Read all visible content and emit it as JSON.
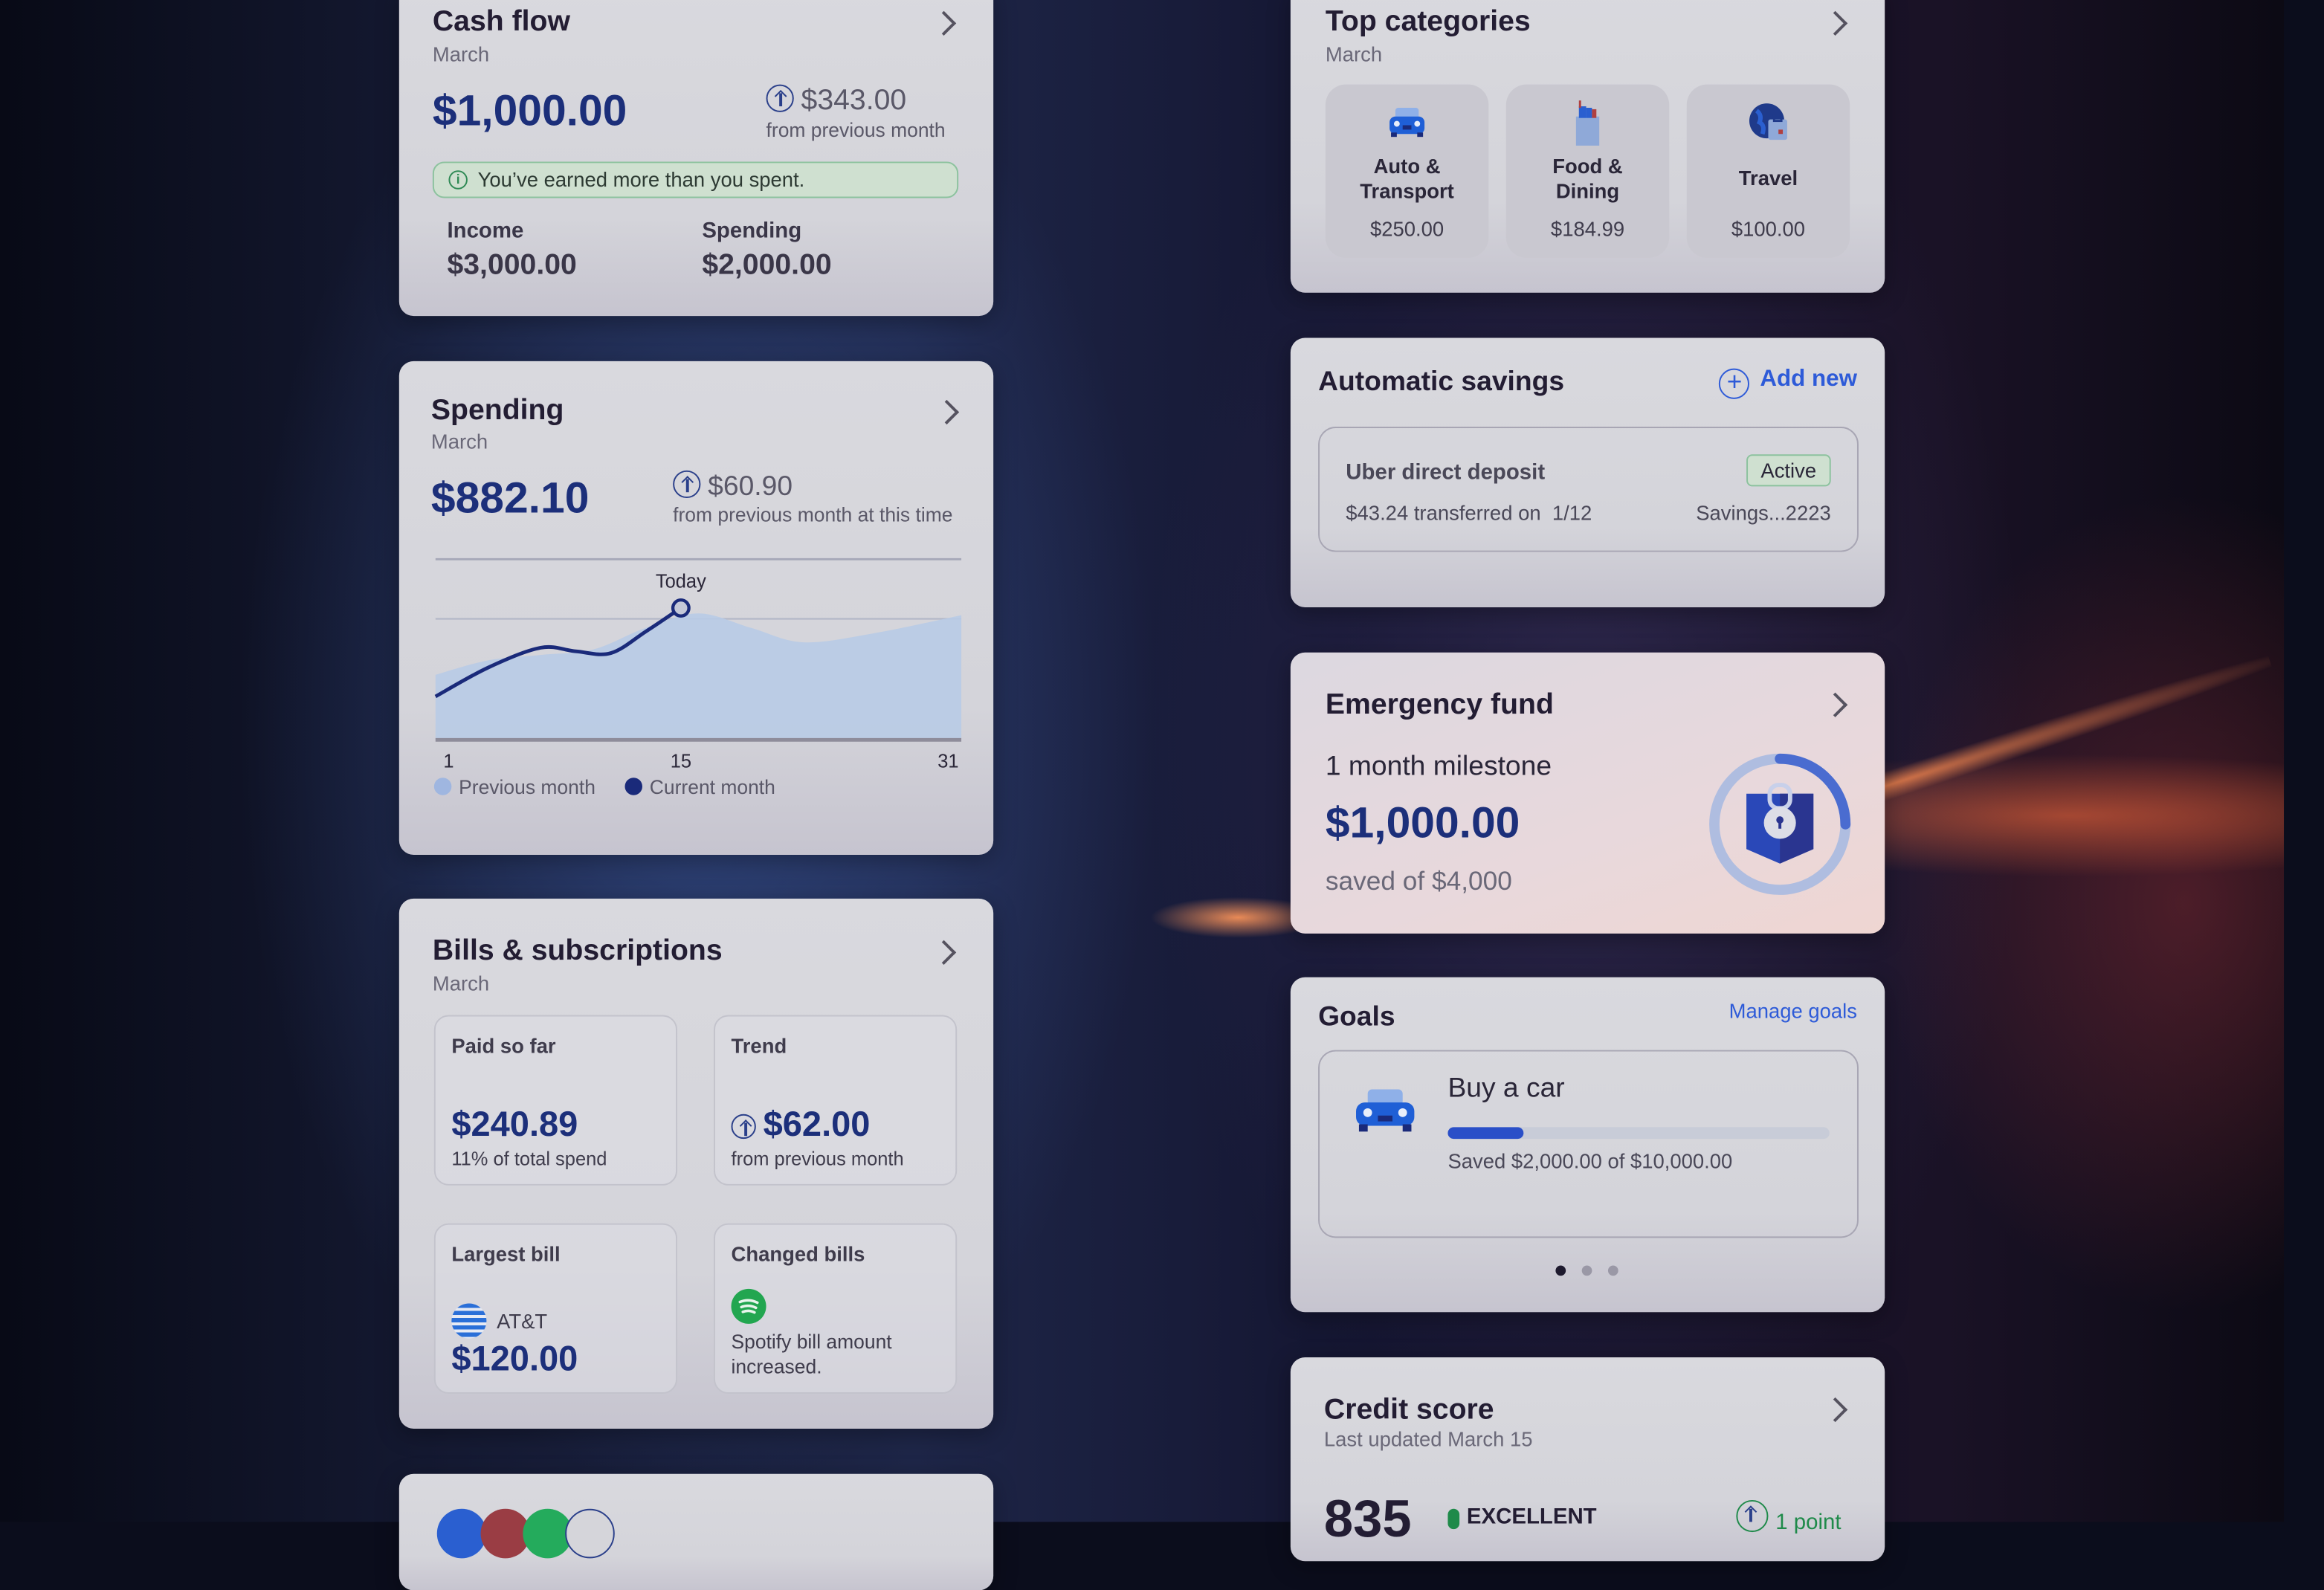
{
  "cash_flow": {
    "title": "Cash flow",
    "period": "March",
    "amount": "$1,000.00",
    "change": "$343.00",
    "change_label": "from previous month",
    "banner": "You’ve earned more than you spent.",
    "income_label": "Income",
    "income": "$3,000.00",
    "spending_label": "Spending",
    "spending": "$2,000.00"
  },
  "spending": {
    "title": "Spending",
    "period": "March",
    "amount": "$882.10",
    "change": "$60.90",
    "change_label": "from previous month at this time"
  },
  "chart_data": {
    "type": "area",
    "xlabel": "",
    "ylabel": "",
    "x_ticks": [
      "1",
      "15",
      "31"
    ],
    "xlim": [
      1,
      31
    ],
    "today_label": "Today",
    "today_day": 15,
    "grid": true,
    "series": [
      {
        "name": "Previous month",
        "color": "#b8cbe6",
        "points": [
          [
            1,
            36
          ],
          [
            4,
            44
          ],
          [
            7,
            47
          ],
          [
            10,
            50
          ],
          [
            13,
            62
          ],
          [
            16,
            70
          ],
          [
            19,
            62
          ],
          [
            22,
            54
          ],
          [
            26,
            59
          ],
          [
            31,
            69
          ]
        ]
      },
      {
        "name": "Current month",
        "color": "#1a2a7a",
        "points": [
          [
            1,
            24
          ],
          [
            4,
            40
          ],
          [
            7,
            51
          ],
          [
            9,
            49
          ],
          [
            11,
            48
          ],
          [
            13,
            60
          ],
          [
            15,
            73
          ]
        ]
      }
    ]
  },
  "bills": {
    "title": "Bills & subscriptions",
    "period": "March",
    "paid": {
      "label": "Paid so far",
      "value": "$240.89",
      "sub": "11% of total spend"
    },
    "trend": {
      "label": "Trend",
      "value": "$62.00",
      "sub": "from previous month"
    },
    "largest": {
      "label": "Largest bill",
      "merchant": "AT&T",
      "value": "$120.00"
    },
    "changed": {
      "label": "Changed bills",
      "text_1": "Spotify bill amount",
      "text_2": "increased."
    }
  },
  "top_categories": {
    "title": "Top categories",
    "period": "March",
    "items": [
      {
        "icon": "car-icon",
        "line1": "Auto &",
        "line2": "Transport",
        "amount": "$250.00"
      },
      {
        "icon": "grocery-bag-icon",
        "line1": "Food &",
        "line2": "Dining",
        "amount": "$184.99"
      },
      {
        "icon": "globe-luggage-icon",
        "line1": "Travel",
        "line2": "",
        "amount": "$100.00"
      }
    ]
  },
  "auto_savings": {
    "title": "Automatic savings",
    "add_label": "Add new",
    "item": {
      "name": "Uber direct deposit",
      "status": "Active",
      "detail": "$43.24 transferred on  1/12",
      "account": "Savings...2223"
    }
  },
  "emergency": {
    "title": "Emergency fund",
    "milestone": "1 month milestone",
    "amount": "$1,000.00",
    "goal": "saved of $4,000",
    "progress": 0.25
  },
  "goals": {
    "title": "Goals",
    "manage": "Manage goals",
    "goal": {
      "name": "Buy a car",
      "progress": 0.2,
      "detail": "Saved $2,000.00 of $10,000.00"
    },
    "page": 1,
    "pages": 3
  },
  "credit": {
    "title": "Credit score",
    "updated": "Last updated March 15",
    "score": "835",
    "rating": "EXCELLENT",
    "change": "1 point"
  },
  "colors": {
    "navy": "#1c2f7a",
    "accent": "#2e5bd8",
    "positive": "#1f8a4a"
  }
}
